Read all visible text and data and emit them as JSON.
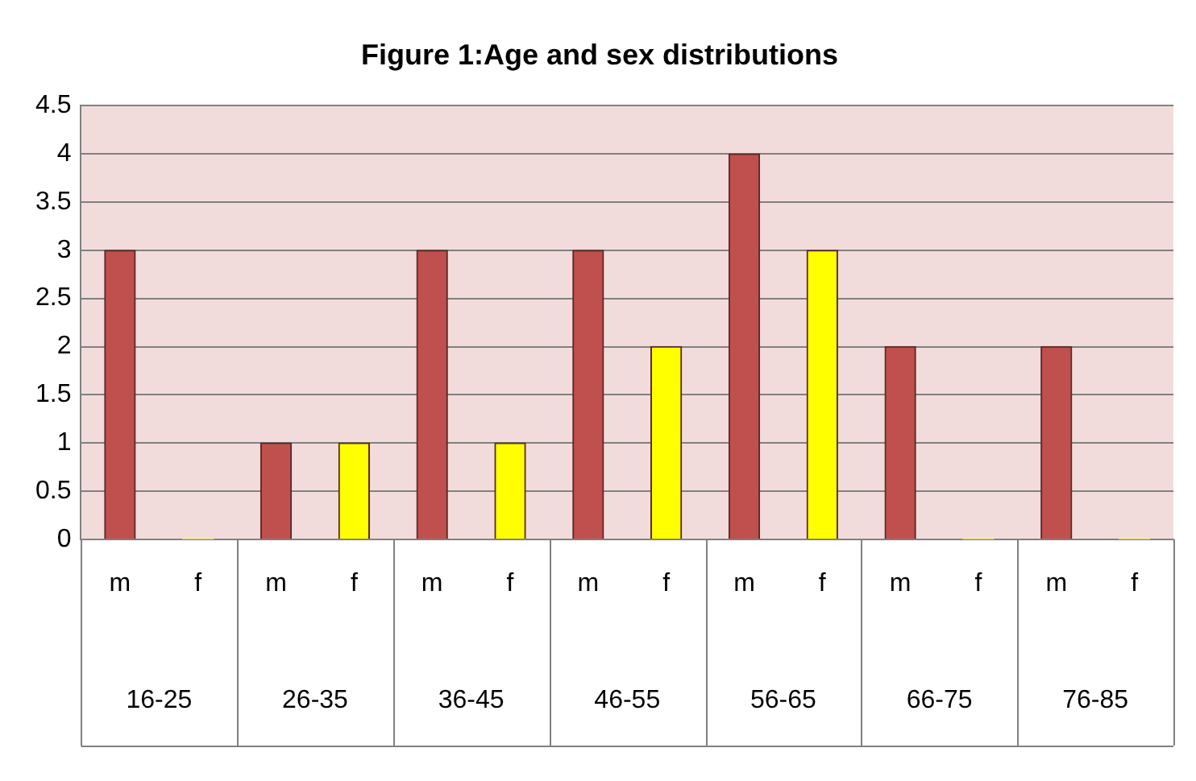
{
  "chart_data": {
    "type": "bar",
    "title": "Figure 1:Age and sex distributions",
    "categories": [
      "m",
      "f",
      "m",
      "f",
      "m",
      "f",
      "m",
      "f",
      "m",
      "f",
      "m",
      "f",
      "m",
      "f"
    ],
    "values": [
      3,
      0,
      1,
      1,
      3,
      1,
      3,
      2,
      4,
      3,
      2,
      0,
      2,
      0
    ],
    "colors": [
      "#c0504d",
      "#ffff00",
      "#c0504d",
      "#ffff00",
      "#c0504d",
      "#ffff00",
      "#c0504d",
      "#ffff00",
      "#c0504d",
      "#ffff00",
      "#c0504d",
      "#ffff00",
      "#c0504d",
      "#ffff00"
    ],
    "annotations": [
      "16-25",
      "26-35",
      "36-45",
      "46-55",
      "56-65",
      "66-75",
      "76-85"
    ],
    "ylim": [
      0,
      4.5
    ],
    "yticks": [
      0,
      0.5,
      1,
      1.5,
      2,
      2.5,
      3,
      3.5,
      4,
      4.5
    ],
    "grid": "y",
    "legend": false
  }
}
